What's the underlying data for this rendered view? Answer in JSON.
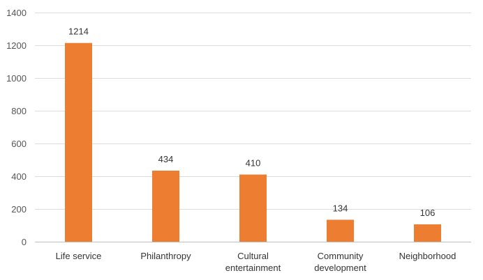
{
  "chart_data": {
    "type": "bar",
    "categories": [
      [
        "Life service"
      ],
      [
        "Philanthropy"
      ],
      [
        "Cultural",
        "entertainment"
      ],
      [
        "Community",
        "development"
      ],
      [
        "Neighborhood"
      ]
    ],
    "values": [
      1214,
      434,
      410,
      134,
      106
    ],
    "data_labels": [
      "1214",
      "434",
      "410",
      "134",
      "106"
    ],
    "ylim": [
      0,
      1400
    ],
    "yticks": [
      0,
      200,
      400,
      600,
      800,
      1000,
      1200,
      1400
    ],
    "grid": true,
    "legend": "none",
    "bar_color": "#ED7D31"
  }
}
